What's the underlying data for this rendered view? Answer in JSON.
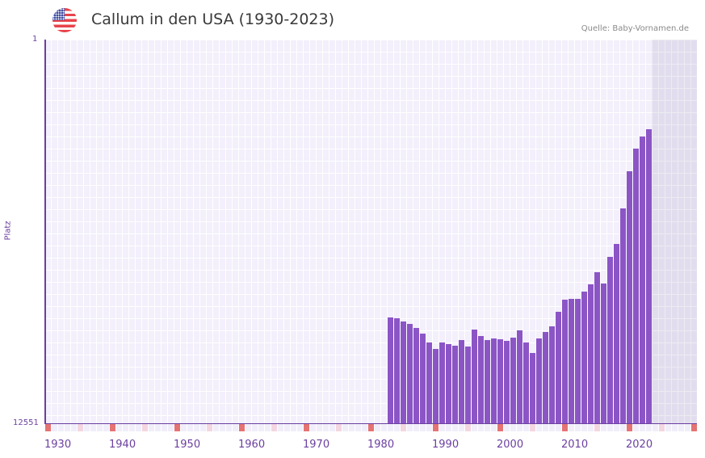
{
  "header": {
    "title": "Callum in den USA (1930-2023)",
    "source": "Quelle: Baby-Vornamen.de",
    "flag_icon": "usa-flag-icon"
  },
  "colors": {
    "bar": "#8b55c6",
    "axis": "#6b3fa0",
    "decade_marker": "#e57373",
    "half_decade_marker": "#f4d6e0",
    "plot_bg": "#f3effb"
  },
  "chart_data": {
    "type": "bar",
    "title": "Callum in den USA (1930-2023)",
    "xlabel": "",
    "ylabel": "Platz",
    "y_inverted": true,
    "ylim": [
      1,
      12551
    ],
    "y_ticks": [
      "1",
      "12551"
    ],
    "x_ticks": [
      "1930",
      "1940",
      "1950",
      "1960",
      "1970",
      "1980",
      "1990",
      "2000",
      "2010",
      "2020"
    ],
    "xlim": [
      1930,
      2030
    ],
    "grid": true,
    "legend": null,
    "categories": [
      1983,
      1984,
      1985,
      1986,
      1987,
      1988,
      1989,
      1990,
      1991,
      1992,
      1993,
      1994,
      1995,
      1996,
      1997,
      1998,
      1999,
      2000,
      2001,
      2002,
      2003,
      2004,
      2005,
      2006,
      2007,
      2008,
      2009,
      2010,
      2011,
      2012,
      2013,
      2014,
      2015,
      2016,
      2017,
      2018,
      2019,
      2020,
      2021,
      2022,
      2023
    ],
    "values": [
      9090,
      9120,
      9230,
      9310,
      9440,
      9620,
      9910,
      10120,
      9910,
      9970,
      10020,
      9830,
      10050,
      9490,
      9700,
      9830,
      9780,
      9810,
      9860,
      9750,
      9510,
      9910,
      10260,
      9780,
      9570,
      9380,
      8910,
      8510,
      8490,
      8490,
      8250,
      8010,
      7620,
      7990,
      7110,
      6690,
      5530,
      4310,
      3570,
      3170,
      2930
    ]
  },
  "axis": {
    "y_top_label": "1",
    "y_bottom_label": "12551",
    "y_title": "Platz"
  }
}
